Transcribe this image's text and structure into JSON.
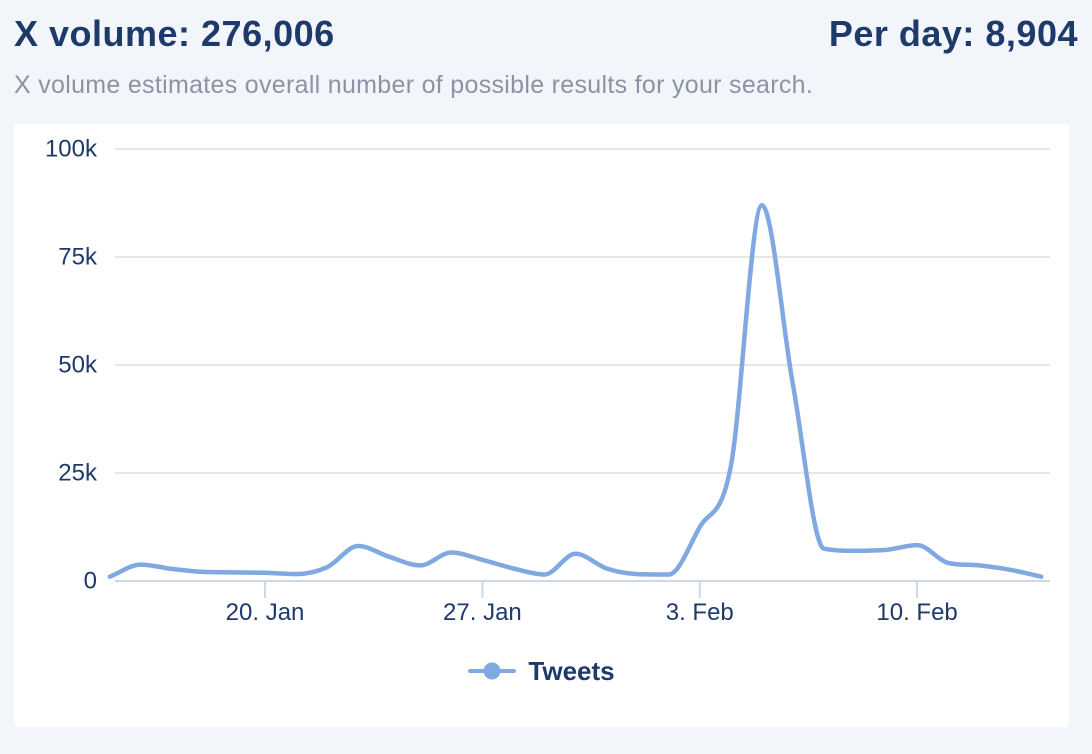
{
  "header": {
    "volume_text": "X volume: 276,006",
    "per_day_text": "Per day: 8,904",
    "subtitle": "X volume estimates overall number of possible results for your search."
  },
  "colors": {
    "page_bg": "#f2f5f9",
    "card_bg": "#ffffff",
    "title_text": "#1d3a6b",
    "subtitle_text": "#8b93a5",
    "accent_line": "#7fa9e0",
    "gridline": "#e6e6e8",
    "axis_line": "#cfd7e2",
    "tick": "#ccd6e6"
  },
  "chart_data": {
    "type": "line",
    "title": "",
    "xlabel": "",
    "ylabel": "",
    "ylim": [
      0,
      100000
    ],
    "grid": true,
    "legend_position": "bottom",
    "x": [
      "Jan 15",
      "Jan 16",
      "Jan 17",
      "Jan 18",
      "Jan 19",
      "Jan 20",
      "Jan 21",
      "Jan 22",
      "Jan 23",
      "Jan 24",
      "Jan 25",
      "Jan 26",
      "Jan 27",
      "Jan 28",
      "Jan 29",
      "Jan 30",
      "Jan 31",
      "Feb 1",
      "Feb 2",
      "Feb 3",
      "Feb 4",
      "Feb 5",
      "Feb 6",
      "Feb 7",
      "Feb 8",
      "Feb 9",
      "Feb 10",
      "Feb 11",
      "Feb 12",
      "Feb 13",
      "Feb 14"
    ],
    "series": [
      {
        "name": "Tweets",
        "color": "#7fa9e0",
        "values": [
          1000,
          3800,
          2800,
          2100,
          2000,
          1900,
          1600,
          3200,
          8100,
          5600,
          3600,
          6600,
          4900,
          2900,
          1500,
          6300,
          2900,
          1600,
          1500,
          12500,
          26500,
          87000,
          45500,
          7500,
          7000,
          7200,
          8300,
          4200,
          3600,
          2600,
          1000
        ]
      }
    ],
    "xticks": [
      {
        "index": 5,
        "label": "20. Jan"
      },
      {
        "index": 12,
        "label": "27. Jan"
      },
      {
        "index": 19,
        "label": "3. Feb"
      },
      {
        "index": 26,
        "label": "10. Feb"
      }
    ],
    "yticks": [
      {
        "value": 0,
        "label": "0"
      },
      {
        "value": 25000,
        "label": "25k"
      },
      {
        "value": 50000,
        "label": "50k"
      },
      {
        "value": 75000,
        "label": "75k"
      },
      {
        "value": 100000,
        "label": "100k"
      }
    ]
  }
}
